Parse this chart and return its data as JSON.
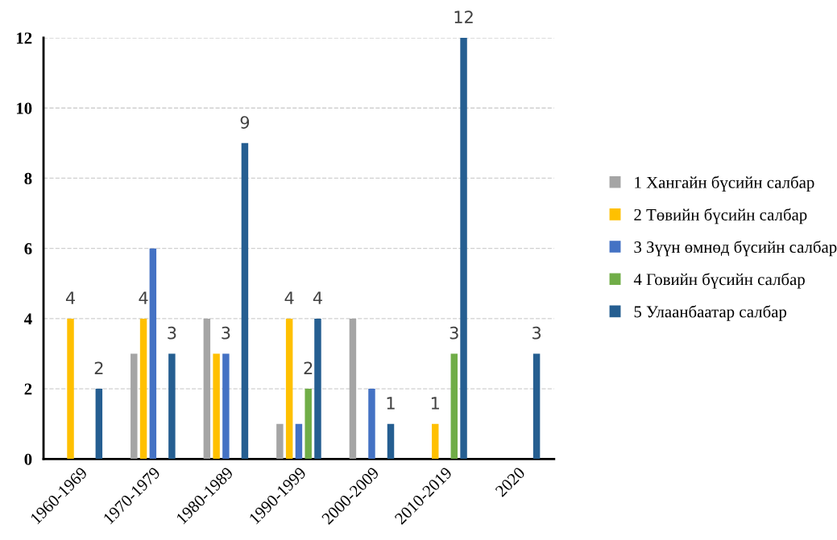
{
  "chart_data": {
    "type": "bar",
    "categories": [
      "1960-1969",
      "1970-1979",
      "1980-1989",
      "1990-1999",
      "2000-2009",
      "2010-2019",
      "2020"
    ],
    "series": [
      {
        "name": "1 Хангайн бүсийн салбар",
        "color": "#a5a5a5",
        "values": [
          null,
          3,
          4,
          1,
          4,
          null,
          null
        ],
        "value_labels": [
          null,
          null,
          null,
          null,
          null,
          null,
          null
        ]
      },
      {
        "name": "2 Төвийн бүсийн салбар",
        "color": "#ffc000",
        "values": [
          4,
          4,
          3,
          4,
          null,
          1,
          null
        ],
        "value_labels": [
          "4",
          "4",
          null,
          "4",
          null,
          "1",
          null
        ]
      },
      {
        "name": "3 Зүүн өмнөд бүсийн салбар",
        "color": "#4472c4",
        "values": [
          null,
          6,
          3,
          1,
          2,
          null,
          null
        ],
        "value_labels": [
          null,
          null,
          "3",
          null,
          null,
          null,
          null
        ]
      },
      {
        "name": "4 Говийн бүсийн салбар",
        "color": "#70ad47",
        "values": [
          null,
          null,
          null,
          2,
          null,
          3,
          null
        ],
        "value_labels": [
          null,
          null,
          null,
          "2",
          null,
          "3",
          null
        ]
      },
      {
        "name": "5 Улаанбаатар салбар",
        "color": "#255e91",
        "values": [
          2,
          3,
          9,
          4,
          1,
          12,
          3
        ],
        "value_labels": [
          "2",
          "3",
          "9",
          "4",
          "1",
          "12",
          "3"
        ]
      }
    ],
    "ylim": [
      0,
      12
    ],
    "yticks": [
      0,
      2,
      4,
      6,
      8,
      10,
      12
    ],
    "grid": "y",
    "legend": "right"
  }
}
